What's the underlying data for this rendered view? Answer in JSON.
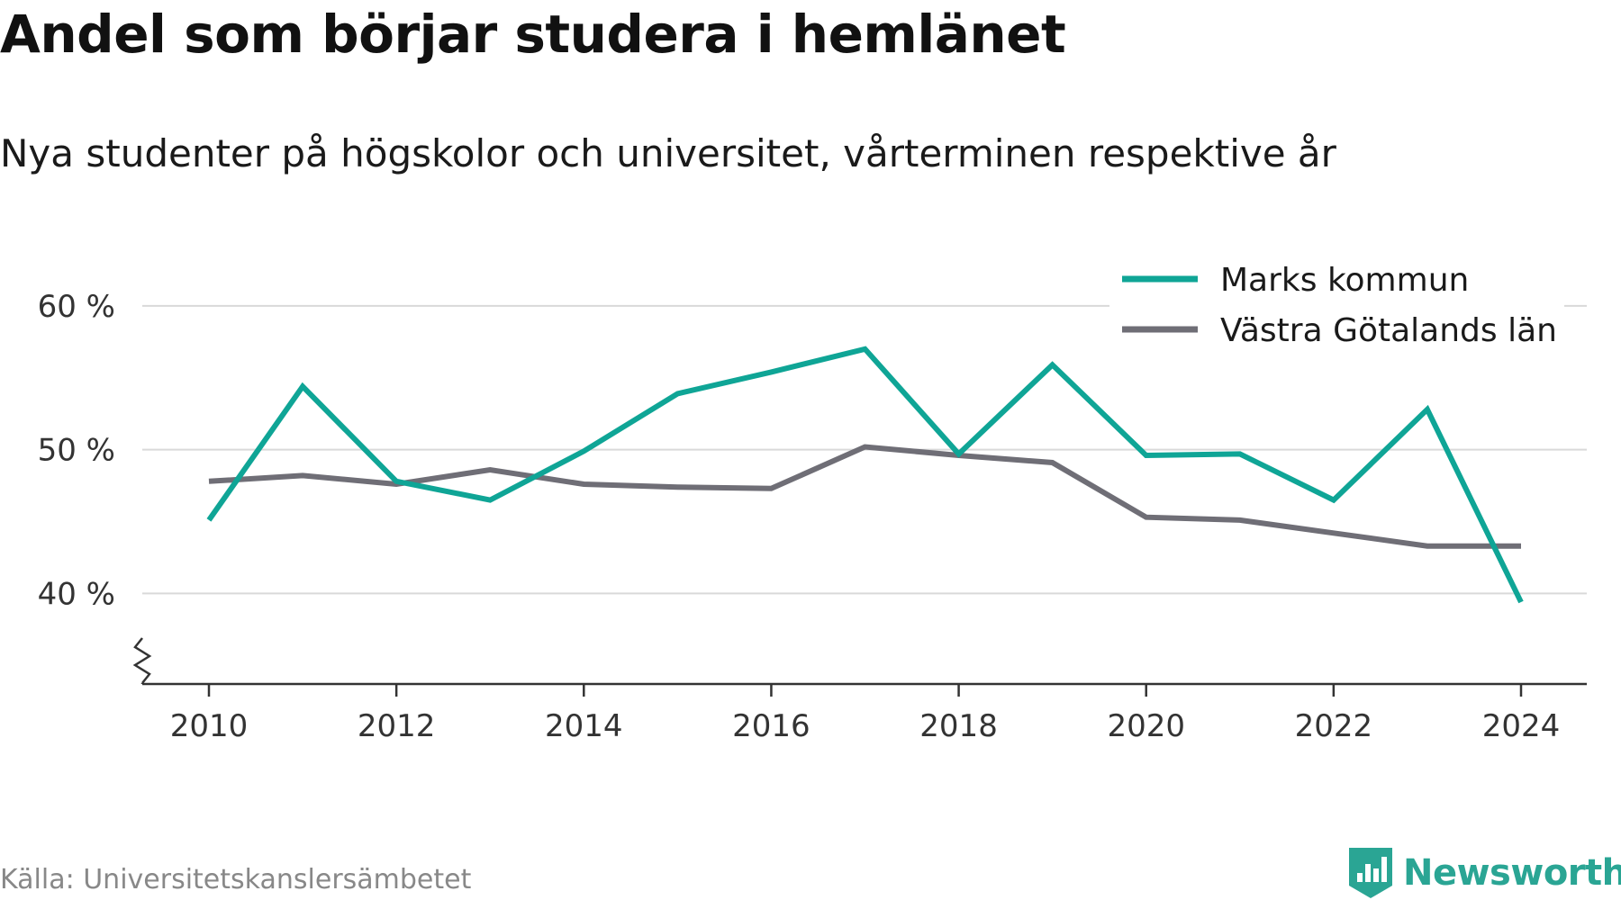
{
  "header": {
    "title": "Andel som börjar studera i hemlänet",
    "subtitle": "Nya studenter på högskolor och universitet, vårterminen respektive år"
  },
  "footer": {
    "source": "Källa: Universitetskanslersämbetet",
    "brand": "Newsworthy",
    "brand_icon": "bar-chart-shield-icon"
  },
  "colors": {
    "marks": "#0fa596",
    "vg": "#6f6e76",
    "grid": "#d9d9d9",
    "axis": "#333333",
    "brand": "#2aa594"
  },
  "chart_data": {
    "type": "line",
    "title": "Andel som börjar studera i hemlänet",
    "subtitle": "Nya studenter på högskolor och universitet, vårterminen respektive år",
    "x": [
      2010,
      2011,
      2012,
      2013,
      2014,
      2015,
      2016,
      2017,
      2018,
      2019,
      2020,
      2021,
      2022,
      2023,
      2024
    ],
    "x_ticks": [
      2010,
      2012,
      2014,
      2016,
      2018,
      2020,
      2022,
      2024
    ],
    "x_tick_labels": [
      "2010",
      "2012",
      "2014",
      "2016",
      "2018",
      "2020",
      "2022",
      "2024"
    ],
    "y_ticks": [
      40,
      50,
      60
    ],
    "y_tick_labels": [
      "40 %",
      "50 %",
      "60 %"
    ],
    "ylim": [
      33.7,
      62.5
    ],
    "axis_break": true,
    "grid": true,
    "legend_position": "top-right",
    "series": [
      {
        "name": "Marks kommun",
        "color": "#0fa596",
        "values": [
          45.1,
          54.4,
          47.8,
          46.5,
          49.9,
          53.9,
          55.4,
          57.0,
          49.7,
          55.9,
          49.6,
          49.7,
          46.5,
          52.8,
          39.4
        ]
      },
      {
        "name": "Västra Götalands län",
        "color": "#6f6e76",
        "values": [
          47.8,
          48.2,
          47.6,
          48.6,
          47.6,
          47.4,
          47.3,
          50.2,
          49.6,
          49.1,
          45.3,
          45.1,
          44.2,
          43.3,
          43.3
        ]
      }
    ]
  }
}
